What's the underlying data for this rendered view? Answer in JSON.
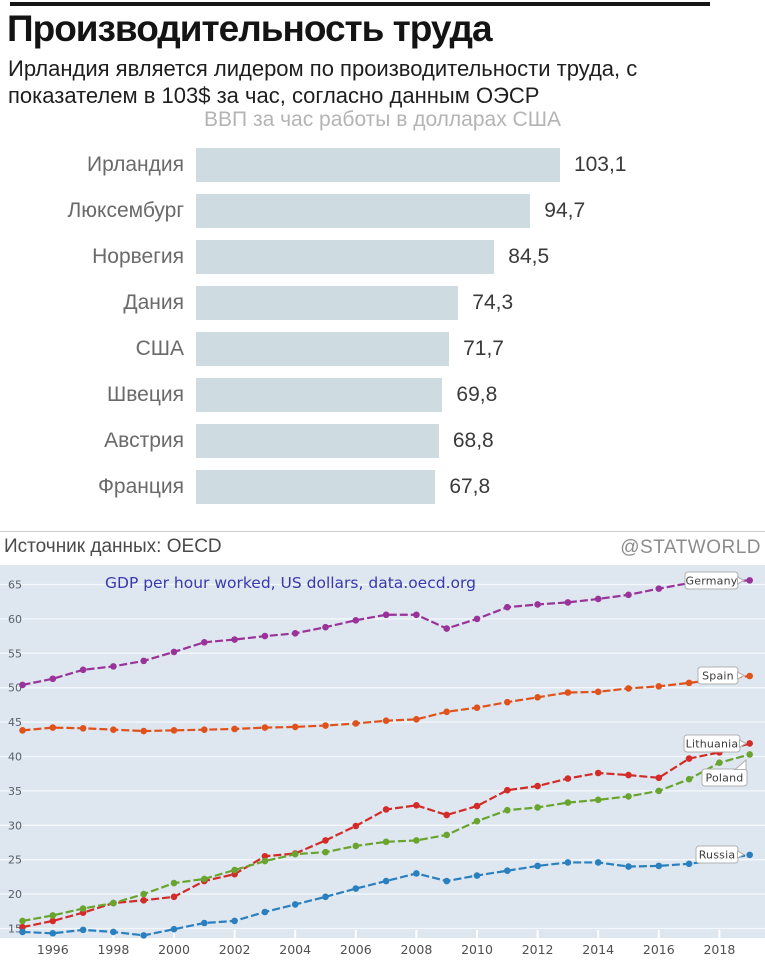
{
  "header": {
    "title": "Производительность труда",
    "subtitle_line1": "Ирландия является лидером по производительности труда, с",
    "subtitle_line2": "показателем в 103$ за час, согласно данным ОЭСР"
  },
  "footer": {
    "source": "Источник данных: OECD",
    "handle": "@STATWORLD"
  },
  "chart_data": [
    {
      "type": "bar",
      "orientation": "horizontal",
      "title": "ВВП за час работы в долларах США",
      "categories": [
        "Ирландия",
        "Люксембург",
        "Норвегия",
        "Дания",
        "США",
        "Швеция",
        "Австрия",
        "Франция"
      ],
      "values": [
        103.1,
        94.7,
        84.5,
        74.3,
        71.7,
        69.8,
        68.8,
        67.8
      ],
      "value_labels": [
        "103,1",
        "94,7",
        "84,5",
        "74,3",
        "71,7",
        "69,8",
        "68,8",
        "67,8"
      ],
      "bar_color": "#cedbe0",
      "xlim": [
        0,
        110
      ]
    },
    {
      "type": "line",
      "title": "GDP per hour worked, US dollars, data.oecd.org",
      "title_color": "#3939ad",
      "plot_bg": "#dee7f0",
      "grid": true,
      "legend": "end-of-line labels",
      "ylim": [
        13.5,
        67.7
      ],
      "y_ticks": [
        15,
        20,
        25,
        30,
        35,
        40,
        45,
        50,
        55,
        60,
        65
      ],
      "x_ticks": [
        1996,
        1998,
        2000,
        2002,
        2004,
        2006,
        2008,
        2010,
        2012,
        2014,
        2016,
        2018
      ],
      "x": [
        1995,
        1996,
        1997,
        1998,
        1999,
        2000,
        2001,
        2002,
        2003,
        2004,
        2005,
        2006,
        2007,
        2008,
        2009,
        2010,
        2011,
        2012,
        2013,
        2014,
        2015,
        2016,
        2017,
        2018,
        2019
      ],
      "series": [
        {
          "name": "Germany",
          "color": "#993299",
          "values": [
            50.4,
            51.3,
            52.6,
            53.1,
            53.9,
            55.2,
            56.6,
            57.0,
            57.5,
            57.9,
            58.8,
            59.8,
            60.6,
            60.6,
            58.6,
            60.0,
            61.7,
            62.1,
            62.4,
            62.9,
            63.5,
            64.4,
            65.2,
            65.4,
            65.6
          ]
        },
        {
          "name": "Spain",
          "color": "#e0521b",
          "values": [
            43.8,
            44.2,
            44.1,
            43.9,
            43.7,
            43.8,
            43.9,
            44.0,
            44.2,
            44.3,
            44.5,
            44.8,
            45.2,
            45.4,
            46.5,
            47.1,
            47.9,
            48.6,
            49.3,
            49.4,
            49.9,
            50.2,
            50.7,
            51.2,
            51.7
          ]
        },
        {
          "name": "Lithuania",
          "color": "#d32b28",
          "values": [
            15.2,
            16.1,
            17.3,
            18.7,
            19.1,
            19.6,
            21.9,
            22.9,
            25.5,
            25.9,
            27.8,
            29.9,
            32.3,
            32.9,
            31.5,
            32.8,
            35.1,
            35.7,
            36.8,
            37.6,
            37.3,
            36.9,
            39.7,
            40.6,
            41.9
          ]
        },
        {
          "name": "Poland",
          "color": "#69a42e",
          "values": [
            16.1,
            16.9,
            17.9,
            18.7,
            20.0,
            21.6,
            22.2,
            23.5,
            24.8,
            25.8,
            26.1,
            27.0,
            27.6,
            27.8,
            28.6,
            30.6,
            32.2,
            32.6,
            33.3,
            33.7,
            34.2,
            35.0,
            36.7,
            39.1,
            40.3
          ]
        },
        {
          "name": "Russia",
          "color": "#2a7fbf",
          "values": [
            14.5,
            14.3,
            14.8,
            14.5,
            14.0,
            14.9,
            15.8,
            16.1,
            17.4,
            18.5,
            19.6,
            20.8,
            21.9,
            23.0,
            21.9,
            22.7,
            23.4,
            24.1,
            24.6,
            24.6,
            24.0,
            24.1,
            24.4,
            25.0,
            25.7
          ]
        }
      ]
    }
  ]
}
